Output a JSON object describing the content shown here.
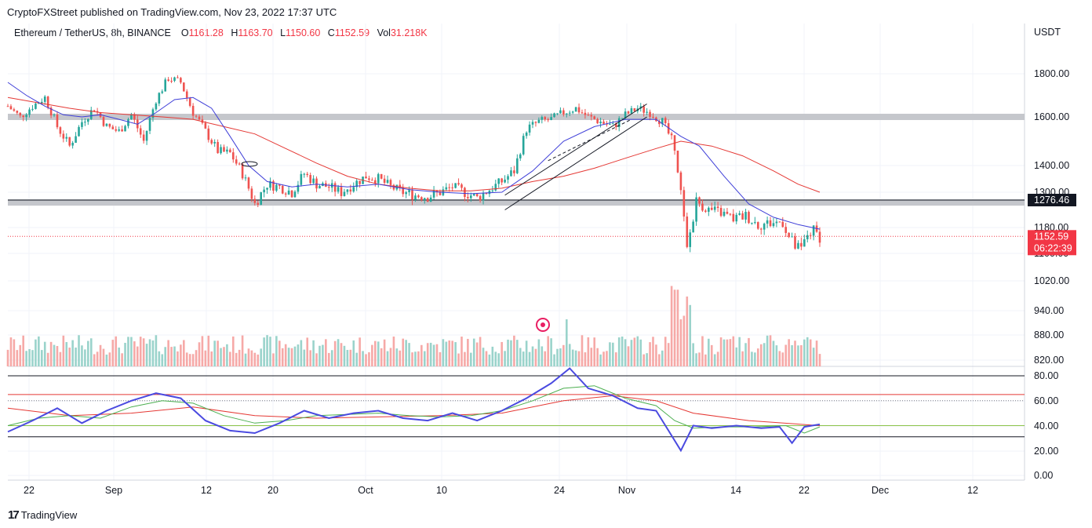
{
  "header": {
    "published": "CryptoFXStreet published on TradingView.com, Nov 23, 2022 17:37 UTC"
  },
  "legend": {
    "symbol": "Ethereum / TetherUS, 8h, BINANCE",
    "o_label": "O",
    "o_value": "1161.28",
    "h_label": "H",
    "h_value": "1163.70",
    "l_label": "L",
    "l_value": "1150.60",
    "c_label": "C",
    "c_value": "1152.59",
    "vol_label": "Vol",
    "vol_value": "31.218K"
  },
  "footer": {
    "brand": "TradingView",
    "logo": "17"
  },
  "colors": {
    "up": "#26a69a",
    "down": "#ef5350",
    "ma_fast": "#3f3fd8",
    "ma_slow": "#e53935",
    "zone": "#c5c7cc",
    "rsi": "#4a4ae0",
    "rsi_signal": "#4caf50",
    "rsi_slow": "#e53935",
    "price_badge": "#f23645",
    "level_badge": "#131722"
  },
  "chart_data": {
    "type": "candlestick",
    "axis_currency": "USDT",
    "y_ticks": [
      "1800.00",
      "1600.00",
      "1400.00",
      "1300.00",
      "1180.00",
      "1100.00",
      "1020.00",
      "940.00",
      "880.00",
      "820.00"
    ],
    "x_ticks": [
      "22",
      "Sep",
      "12",
      "20",
      "Oct",
      "10",
      "24",
      "Nov",
      "14",
      "22",
      "Dec",
      "12"
    ],
    "last_price": "1152.59",
    "countdown": "06:22:39",
    "horizontal_level": "1276.46",
    "resistance_zone": 1600,
    "support_zone": 1265,
    "price_path": [
      [
        0,
        1650
      ],
      [
        4,
        1600
      ],
      [
        8,
        1650
      ],
      [
        12,
        1690
      ],
      [
        16,
        1560
      ],
      [
        20,
        1480
      ],
      [
        24,
        1580
      ],
      [
        28,
        1640
      ],
      [
        32,
        1560
      ],
      [
        36,
        1540
      ],
      [
        40,
        1610
      ],
      [
        44,
        1500
      ],
      [
        48,
        1680
      ],
      [
        52,
        1780
      ],
      [
        56,
        1760
      ],
      [
        60,
        1620
      ],
      [
        64,
        1540
      ],
      [
        68,
        1460
      ],
      [
        72,
        1450
      ],
      [
        76,
        1370
      ],
      [
        80,
        1260
      ],
      [
        84,
        1330
      ],
      [
        88,
        1320
      ],
      [
        92,
        1300
      ],
      [
        96,
        1370
      ],
      [
        100,
        1330
      ],
      [
        104,
        1320
      ],
      [
        108,
        1300
      ],
      [
        112,
        1330
      ],
      [
        116,
        1360
      ],
      [
        120,
        1350
      ],
      [
        124,
        1320
      ],
      [
        128,
        1300
      ],
      [
        132,
        1290
      ],
      [
        136,
        1285
      ],
      [
        140,
        1300
      ],
      [
        144,
        1320
      ],
      [
        148,
        1300
      ],
      [
        152,
        1280
      ],
      [
        156,
        1310
      ],
      [
        160,
        1340
      ],
      [
        164,
        1380
      ],
      [
        168,
        1550
      ],
      [
        172,
        1580
      ],
      [
        176,
        1590
      ],
      [
        180,
        1620
      ],
      [
        184,
        1640
      ],
      [
        188,
        1600
      ],
      [
        192,
        1580
      ],
      [
        196,
        1560
      ],
      [
        200,
        1610
      ],
      [
        204,
        1640
      ],
      [
        208,
        1620
      ],
      [
        212,
        1580
      ],
      [
        216,
        1480
      ],
      [
        218,
        1300
      ],
      [
        220,
        1110
      ],
      [
        223,
        1270
      ],
      [
        227,
        1240
      ],
      [
        231,
        1230
      ],
      [
        235,
        1210
      ],
      [
        239,
        1220
      ],
      [
        243,
        1190
      ],
      [
        247,
        1195
      ],
      [
        251,
        1200
      ],
      [
        253,
        1150
      ],
      [
        255,
        1120
      ],
      [
        257,
        1110
      ],
      [
        259,
        1160
      ],
      [
        261,
        1170
      ],
      [
        263,
        1152.59
      ]
    ],
    "ma_fast": [
      [
        0,
        1760
      ],
      [
        6,
        1700
      ],
      [
        12,
        1650
      ],
      [
        18,
        1610
      ],
      [
        24,
        1600
      ],
      [
        30,
        1610
      ],
      [
        36,
        1590
      ],
      [
        42,
        1570
      ],
      [
        48,
        1620
      ],
      [
        54,
        1680
      ],
      [
        60,
        1690
      ],
      [
        66,
        1640
      ],
      [
        72,
        1520
      ],
      [
        78,
        1400
      ],
      [
        84,
        1340
      ],
      [
        92,
        1320
      ],
      [
        100,
        1330
      ],
      [
        110,
        1320
      ],
      [
        120,
        1330
      ],
      [
        130,
        1310
      ],
      [
        140,
        1300
      ],
      [
        150,
        1295
      ],
      [
        160,
        1300
      ],
      [
        170,
        1380
      ],
      [
        180,
        1500
      ],
      [
        190,
        1560
      ],
      [
        200,
        1590
      ],
      [
        210,
        1590
      ],
      [
        218,
        1520
      ],
      [
        224,
        1480
      ],
      [
        232,
        1360
      ],
      [
        240,
        1260
      ],
      [
        248,
        1215
      ],
      [
        256,
        1190
      ],
      [
        263,
        1175
      ]
    ],
    "ma_slow": [
      [
        0,
        1690
      ],
      [
        10,
        1665
      ],
      [
        20,
        1640
      ],
      [
        30,
        1620
      ],
      [
        40,
        1610
      ],
      [
        50,
        1600
      ],
      [
        60,
        1590
      ],
      [
        70,
        1560
      ],
      [
        80,
        1530
      ],
      [
        90,
        1470
      ],
      [
        100,
        1410
      ],
      [
        110,
        1360
      ],
      [
        120,
        1330
      ],
      [
        130,
        1315
      ],
      [
        140,
        1305
      ],
      [
        150,
        1305
      ],
      [
        160,
        1315
      ],
      [
        170,
        1340
      ],
      [
        180,
        1360
      ],
      [
        190,
        1390
      ],
      [
        200,
        1430
      ],
      [
        210,
        1470
      ],
      [
        218,
        1500
      ],
      [
        228,
        1480
      ],
      [
        238,
        1440
      ],
      [
        248,
        1380
      ],
      [
        256,
        1330
      ],
      [
        263,
        1300
      ]
    ],
    "rsi_ticks": [
      "80.00",
      "60.00",
      "40.00",
      "20.00",
      "0.00"
    ],
    "rsi_levels": {
      "overbought": 65,
      "upper_band": 80,
      "mid": 40,
      "lower_band": 31
    },
    "rsi": [
      [
        0,
        35
      ],
      [
        8,
        44
      ],
      [
        16,
        54
      ],
      [
        24,
        42
      ],
      [
        32,
        52
      ],
      [
        40,
        60
      ],
      [
        48,
        66
      ],
      [
        56,
        62
      ],
      [
        64,
        44
      ],
      [
        72,
        36
      ],
      [
        80,
        34
      ],
      [
        88,
        42
      ],
      [
        96,
        52
      ],
      [
        104,
        46
      ],
      [
        112,
        50
      ],
      [
        120,
        52
      ],
      [
        128,
        46
      ],
      [
        136,
        44
      ],
      [
        144,
        50
      ],
      [
        152,
        44
      ],
      [
        160,
        52
      ],
      [
        168,
        62
      ],
      [
        176,
        74
      ],
      [
        182,
        86
      ],
      [
        188,
        70
      ],
      [
        196,
        64
      ],
      [
        204,
        54
      ],
      [
        210,
        52
      ],
      [
        214,
        36
      ],
      [
        218,
        20
      ],
      [
        222,
        40
      ],
      [
        228,
        38
      ],
      [
        236,
        40
      ],
      [
        244,
        38
      ],
      [
        250,
        39
      ],
      [
        254,
        26
      ],
      [
        258,
        39
      ],
      [
        263,
        41
      ]
    ],
    "rsi_signal": [
      [
        0,
        40
      ],
      [
        10,
        46
      ],
      [
        20,
        48
      ],
      [
        30,
        46
      ],
      [
        40,
        55
      ],
      [
        50,
        60
      ],
      [
        60,
        58
      ],
      [
        70,
        48
      ],
      [
        80,
        42
      ],
      [
        90,
        44
      ],
      [
        100,
        48
      ],
      [
        110,
        49
      ],
      [
        120,
        50
      ],
      [
        130,
        48
      ],
      [
        140,
        47
      ],
      [
        150,
        48
      ],
      [
        160,
        52
      ],
      [
        170,
        60
      ],
      [
        180,
        70
      ],
      [
        190,
        72
      ],
      [
        200,
        62
      ],
      [
        210,
        56
      ],
      [
        216,
        44
      ],
      [
        222,
        38
      ],
      [
        232,
        39
      ],
      [
        242,
        39
      ],
      [
        252,
        40
      ],
      [
        258,
        34
      ],
      [
        263,
        39
      ]
    ],
    "rsi_slow": [
      [
        0,
        54
      ],
      [
        20,
        48
      ],
      [
        40,
        50
      ],
      [
        60,
        55
      ],
      [
        80,
        48
      ],
      [
        100,
        46
      ],
      [
        120,
        47
      ],
      [
        140,
        48
      ],
      [
        160,
        50
      ],
      [
        180,
        60
      ],
      [
        196,
        64
      ],
      [
        210,
        60
      ],
      [
        222,
        50
      ],
      [
        240,
        44
      ],
      [
        263,
        40
      ]
    ]
  }
}
